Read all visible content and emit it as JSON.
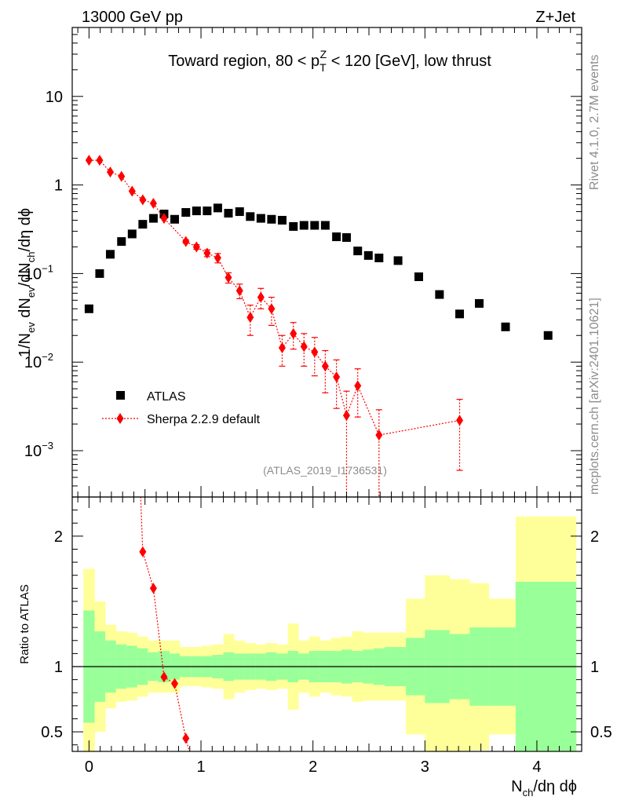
{
  "header": {
    "energy_label": "13000 GeV pp",
    "process_label": "Z+Jet",
    "rivet_label": "Rivet 4.1.0,  2.7M events",
    "source_label": "mcplots.cern.ch [arXiv:2401.10621]",
    "analysis_label": "(ATLAS_2019_I1736531)"
  },
  "colors": {
    "data": "#000000",
    "mc": "#ff0000",
    "band_inner": "#99ff99",
    "band_outer": "#ffff99"
  },
  "chart_data": [
    {
      "type": "scatter",
      "title": "Toward region, 80 < p_T^Z < 120 [GeV], low thrust",
      "title_parts": {
        "main": "Toward region, 80 < p",
        "sub": "T",
        "sup": "Z",
        "tail": " < 120 [GeV], low thrust"
      },
      "xlabel": "N_ch/dη dϕ",
      "ylabel": "1/N_ev dN_ev/dN_ch/dη dϕ",
      "yscale": "log",
      "xlim": [
        -0.15,
        4.4
      ],
      "ylim": [
        0.0003,
        60
      ],
      "y_ticks": [
        {
          "value": 10,
          "label": "10"
        },
        {
          "value": 1,
          "label": "1"
        },
        {
          "value": 0.1,
          "label": "10",
          "exp": "−1"
        },
        {
          "value": 0.01,
          "label": "10",
          "exp": "−2"
        },
        {
          "value": 0.001,
          "label": "10",
          "exp": "−3"
        }
      ],
      "legend": {
        "position": "bottom-left",
        "entries": [
          {
            "label": "ATLAS",
            "marker": "square"
          },
          {
            "label": "Sherpa 2.2.9 default",
            "marker": "diamond"
          }
        ]
      },
      "series": [
        {
          "name": "ATLAS",
          "x": [
            0.0,
            0.095,
            0.19,
            0.29,
            0.385,
            0.48,
            0.575,
            0.67,
            0.765,
            0.865,
            0.96,
            1.055,
            1.15,
            1.245,
            1.345,
            1.44,
            1.535,
            1.63,
            1.725,
            1.825,
            1.92,
            2.015,
            2.11,
            2.21,
            2.3,
            2.4,
            2.495,
            2.59,
            2.76,
            2.945,
            3.13,
            3.31,
            3.485,
            3.72,
            4.1
          ],
          "y": [
            0.04,
            0.1,
            0.165,
            0.23,
            0.28,
            0.36,
            0.42,
            0.47,
            0.41,
            0.49,
            0.51,
            0.51,
            0.55,
            0.48,
            0.5,
            0.44,
            0.42,
            0.41,
            0.4,
            0.34,
            0.35,
            0.35,
            0.35,
            0.26,
            0.255,
            0.18,
            0.16,
            0.15,
            0.14,
            0.092,
            0.058,
            0.035,
            0.046,
            0.025,
            0.02
          ]
        },
        {
          "name": "Sherpa 2.2.9 default",
          "x": [
            0.0,
            0.095,
            0.19,
            0.29,
            0.385,
            0.48,
            0.575,
            0.67,
            0.765,
            0.865,
            0.96,
            1.055,
            1.15,
            1.245,
            1.345,
            1.44,
            1.535,
            1.63,
            1.725,
            1.825,
            1.92,
            2.015,
            2.11,
            2.21,
            2.3,
            2.4,
            2.59,
            3.31
          ],
          "y": [
            1.9,
            1.9,
            1.4,
            1.25,
            0.85,
            0.68,
            0.62,
            0.42,
            null,
            0.23,
            0.2,
            0.17,
            0.15,
            0.09,
            0.064,
            0.032,
            0.054,
            0.04,
            0.0145,
            0.021,
            0.015,
            0.013,
            0.009,
            0.0068,
            0.0025,
            0.0054,
            0.0015,
            0.0022
          ],
          "err_low": [
            0,
            0,
            0,
            0,
            0,
            0,
            0,
            0,
            null,
            0.01,
            0.012,
            0.015,
            0.018,
            0.012,
            0.012,
            0.012,
            0.014,
            0.014,
            0.0055,
            0.007,
            0.006,
            0.006,
            0.0045,
            0.0038,
            0.0022,
            0.003,
            0.0014,
            0.0016
          ],
          "err_high": [
            0,
            0,
            0,
            0,
            0,
            0,
            0,
            0,
            null,
            0.01,
            0.012,
            0.015,
            0.018,
            0.012,
            0.012,
            0.012,
            0.014,
            0.014,
            0.0055,
            0.007,
            0.006,
            0.006,
            0.0045,
            0.0038,
            0.0022,
            0.003,
            0.0014,
            0.0016
          ]
        }
      ]
    },
    {
      "type": "area",
      "ylabel": "Ratio to ATLAS",
      "xlabel": "N_ch/dη dϕ",
      "xlim": [
        -0.15,
        4.4
      ],
      "ylim": [
        0.35,
        2.3
      ],
      "x_ticks": [
        0,
        1,
        2,
        3,
        4
      ],
      "y_ticks": [
        0.5,
        1,
        2
      ],
      "bin_edges": [
        -0.05,
        0.05,
        0.145,
        0.24,
        0.335,
        0.43,
        0.525,
        0.62,
        0.72,
        0.81,
        0.91,
        1.005,
        1.1,
        1.2,
        1.295,
        1.39,
        1.485,
        1.58,
        1.675,
        1.775,
        1.87,
        1.965,
        2.06,
        2.16,
        2.255,
        2.35,
        2.445,
        2.54,
        2.64,
        2.83,
        3.0,
        3.22,
        3.4,
        3.57,
        3.81,
        4.35
      ],
      "band_inner": {
        "up": [
          1.43,
          1.27,
          1.2,
          1.17,
          1.16,
          1.14,
          1.11,
          1.12,
          1.1,
          1.08,
          1.08,
          1.08,
          1.09,
          1.11,
          1.1,
          1.1,
          1.1,
          1.11,
          1.1,
          1.12,
          1.1,
          1.12,
          1.12,
          1.12,
          1.13,
          1.12,
          1.13,
          1.14,
          1.15,
          1.22,
          1.28,
          1.25,
          1.3,
          1.3,
          1.65
        ],
        "down": [
          0.57,
          0.73,
          0.8,
          0.83,
          0.84,
          0.86,
          0.89,
          0.88,
          0.9,
          0.92,
          0.92,
          0.92,
          0.91,
          0.89,
          0.9,
          0.9,
          0.9,
          0.89,
          0.9,
          0.88,
          0.9,
          0.88,
          0.88,
          0.88,
          0.87,
          0.88,
          0.87,
          0.86,
          0.85,
          0.78,
          0.72,
          0.75,
          0.7,
          0.7,
          0.35
        ]
      },
      "band_outer": {
        "up": [
          1.75,
          1.5,
          1.32,
          1.27,
          1.26,
          1.23,
          1.2,
          1.2,
          1.2,
          1.15,
          1.15,
          1.16,
          1.17,
          1.25,
          1.2,
          1.18,
          1.17,
          1.18,
          1.17,
          1.33,
          1.2,
          1.23,
          1.2,
          1.22,
          1.23,
          1.27,
          1.26,
          1.26,
          1.26,
          1.52,
          1.7,
          1.67,
          1.64,
          1.52,
          2.15
        ],
        "down": [
          0.25,
          0.5,
          0.68,
          0.73,
          0.74,
          0.77,
          0.8,
          0.8,
          0.8,
          0.85,
          0.85,
          0.84,
          0.83,
          0.75,
          0.8,
          0.82,
          0.83,
          0.82,
          0.83,
          0.67,
          0.8,
          0.77,
          0.8,
          0.78,
          0.77,
          0.73,
          0.74,
          0.74,
          0.74,
          0.48,
          0.3,
          0.33,
          0.36,
          0.48,
          0.3
        ]
      },
      "series": [
        {
          "name": "Sherpa 2.2.9 default / ATLAS",
          "x": [
            0.43,
            0.48,
            0.575,
            0.67,
            0.765,
            0.865,
            0.91
          ],
          "y": [
            3.0,
            1.88,
            1.6,
            0.92,
            0.87,
            0.45,
            0.3
          ]
        }
      ]
    }
  ]
}
